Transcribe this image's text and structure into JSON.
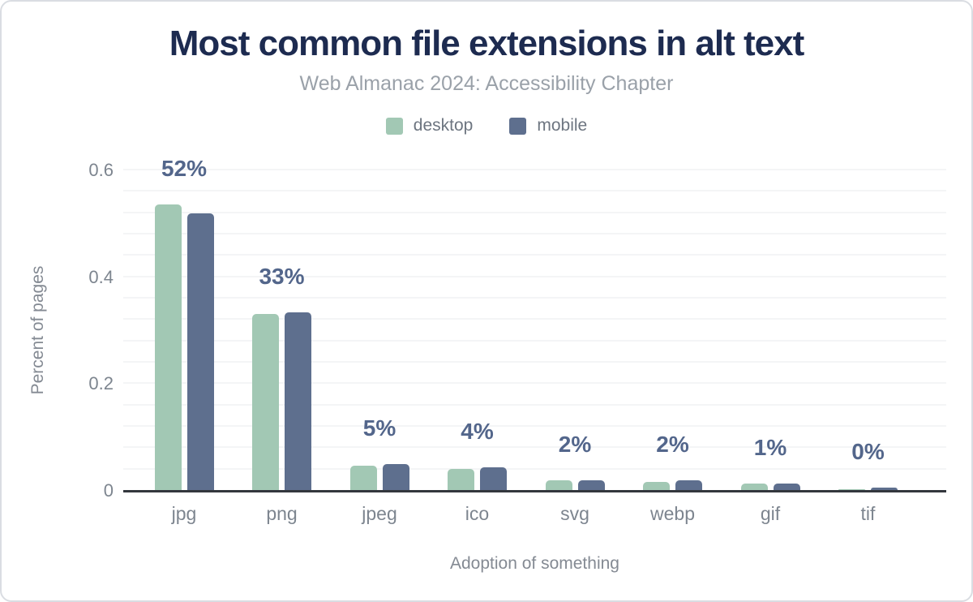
{
  "header": {
    "title": "Most common file extensions in alt text",
    "subtitle": "Web Almanac 2024: Accessibility Chapter"
  },
  "chart_data": {
    "type": "bar",
    "title": "Most common file extensions in alt text",
    "subtitle": "Web Almanac 2024: Accessibility Chapter",
    "xlabel": "Adoption of something",
    "ylabel": "Percent of pages",
    "categories": [
      "jpg",
      "png",
      "jpeg",
      "ico",
      "svg",
      "webp",
      "gif",
      "tif"
    ],
    "series": [
      {
        "name": "desktop",
        "color": "#a2c8b4",
        "values": [
          0.535,
          0.33,
          0.045,
          0.04,
          0.018,
          0.015,
          0.012,
          0.001
        ]
      },
      {
        "name": "mobile",
        "color": "#5e6f8e",
        "values": [
          0.518,
          0.333,
          0.048,
          0.042,
          0.018,
          0.018,
          0.012,
          0.004
        ]
      }
    ],
    "bar_labels": [
      "52%",
      "33%",
      "5%",
      "4%",
      "2%",
      "2%",
      "1%",
      "0%"
    ],
    "y_ticks": [
      0,
      0.2,
      0.4,
      0.6
    ],
    "y_tick_labels": [
      "0",
      "0.2",
      "0.4",
      "0.6"
    ],
    "ylim": [
      0,
      0.6
    ],
    "minor_grid_step": 0.04,
    "grid": "horizontal",
    "legend_position": "top",
    "colors": {
      "title": "#1d2b50",
      "subtitle": "#9aa1a9",
      "data_label": "#53668b",
      "axis_text": "#7d858f",
      "gridline": "#f4f5f6",
      "baseline": "#33373d"
    }
  }
}
